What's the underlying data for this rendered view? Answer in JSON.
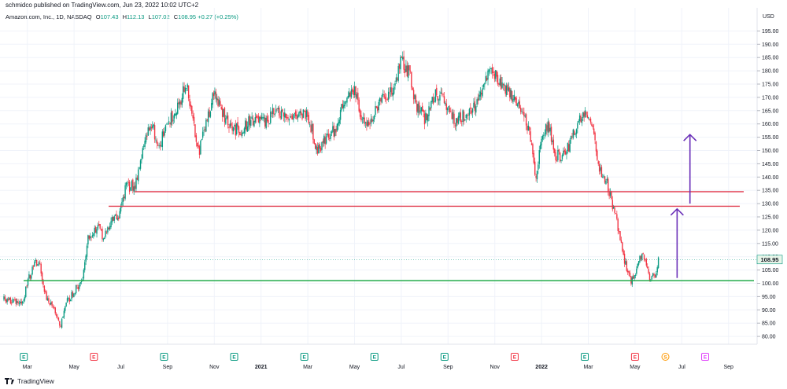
{
  "header": {
    "published": "schmidco published on TradingView.com, Jun 23, 2022 10:02 UTC+2",
    "symbol": "Amazon.com, Inc., 1D, NASDAQ",
    "ohlc": [
      {
        "label": "O",
        "value": "107.43"
      },
      {
        "label": "H",
        "value": "112.13"
      },
      {
        "label": "L",
        "value": "107.02"
      },
      {
        "label": "C",
        "value": "108.95"
      },
      {
        "label": "",
        "value": "+0.27 (+0.25%)"
      }
    ]
  },
  "footer": {
    "brand": "TradingView"
  },
  "colors": {
    "up": "#089981",
    "down": "#f23645",
    "resistance": "#e0394d",
    "support": "#22ab4a",
    "arrow": "#6a2fb8",
    "grid": "#f0f3fa"
  },
  "chart_data": {
    "type": "candlestick",
    "ylabel": "USD",
    "ylim": [
      77,
      197
    ],
    "y_ticks": [
      80.0,
      85.0,
      90.0,
      95.0,
      100.0,
      105.0,
      110.0,
      115.0,
      120.0,
      125.0,
      130.0,
      135.0,
      140.0,
      145.0,
      150.0,
      155.0,
      160.0,
      165.0,
      170.0,
      175.0,
      180.0,
      185.0,
      190.0,
      195.0
    ],
    "x_ticks": [
      "Mar",
      "May",
      "Jul",
      "Sep",
      "Nov",
      "2021",
      "Mar",
      "May",
      "Jul",
      "Sep",
      "Nov",
      "2022",
      "Mar",
      "May",
      "Jul",
      "Sep"
    ],
    "x_tick_bold": [
      false,
      false,
      false,
      false,
      false,
      true,
      false,
      false,
      false,
      false,
      false,
      true,
      false,
      false,
      false,
      false
    ],
    "last_price": "108.95",
    "horizontal_lines": [
      {
        "price": 134.5,
        "color": "resistance"
      },
      {
        "price": 129.0,
        "color": "resistance"
      },
      {
        "price": 101.0,
        "color": "support"
      }
    ],
    "arrows": [
      {
        "month": 28.8,
        "from": 102,
        "to": 128
      },
      {
        "month": 29.35,
        "from": 130,
        "to": 156
      }
    ],
    "events": [
      {
        "month": 0.85,
        "type": "E"
      },
      {
        "month": 3.85,
        "type": "E-red"
      },
      {
        "month": 6.85,
        "type": "E"
      },
      {
        "month": 9.85,
        "type": "E"
      },
      {
        "month": 12.85,
        "type": "E"
      },
      {
        "month": 15.85,
        "type": "E"
      },
      {
        "month": 18.85,
        "type": "E"
      },
      {
        "month": 21.85,
        "type": "E-red"
      },
      {
        "month": 24.85,
        "type": "E"
      },
      {
        "month": 27.0,
        "type": "E-red"
      },
      {
        "month": 28.3,
        "type": "S"
      },
      {
        "month": 30.0,
        "type": "E-future"
      }
    ],
    "price_path": [
      [
        0.0,
        94
      ],
      [
        0.8,
        92
      ],
      [
        1.0,
        100
      ],
      [
        1.3,
        108
      ],
      [
        1.55,
        106
      ],
      [
        1.7,
        97
      ],
      [
        2.0,
        92
      ],
      [
        2.25,
        88
      ],
      [
        2.4,
        83
      ],
      [
        2.7,
        93
      ],
      [
        3.0,
        97
      ],
      [
        3.35,
        101
      ],
      [
        3.6,
        118
      ],
      [
        4.0,
        121
      ],
      [
        4.3,
        117
      ],
      [
        4.6,
        124
      ],
      [
        4.9,
        125
      ],
      [
        5.2,
        136
      ],
      [
        5.6,
        137
      ],
      [
        6.0,
        152
      ],
      [
        6.3,
        161
      ],
      [
        6.6,
        151
      ],
      [
        7.0,
        160
      ],
      [
        7.4,
        166
      ],
      [
        7.8,
        175
      ],
      [
        8.0,
        165
      ],
      [
        8.35,
        150
      ],
      [
        8.7,
        162
      ],
      [
        9.0,
        172
      ],
      [
        9.3,
        165
      ],
      [
        9.7,
        158
      ],
      [
        10.2,
        158
      ],
      [
        10.6,
        162
      ],
      [
        11.2,
        160
      ],
      [
        11.6,
        165
      ],
      [
        12.0,
        162
      ],
      [
        12.4,
        164
      ],
      [
        13.0,
        164
      ],
      [
        13.4,
        150
      ],
      [
        13.8,
        155
      ],
      [
        14.2,
        158
      ],
      [
        14.6,
        170
      ],
      [
        15.0,
        173
      ],
      [
        15.3,
        161
      ],
      [
        15.7,
        161
      ],
      [
        16.1,
        168
      ],
      [
        16.6,
        172
      ],
      [
        17.0,
        184
      ],
      [
        17.4,
        178
      ],
      [
        17.6,
        168
      ],
      [
        18.0,
        162
      ],
      [
        18.5,
        172
      ],
      [
        19.0,
        166
      ],
      [
        19.3,
        161
      ],
      [
        19.8,
        164
      ],
      [
        20.3,
        168
      ],
      [
        20.8,
        181
      ],
      [
        21.2,
        176
      ],
      [
        21.6,
        172
      ],
      [
        22.2,
        165
      ],
      [
        22.5,
        155
      ],
      [
        22.75,
        140
      ],
      [
        23.0,
        155
      ],
      [
        23.3,
        160
      ],
      [
        23.6,
        148
      ],
      [
        24.0,
        148
      ],
      [
        24.4,
        157
      ],
      [
        24.9,
        166
      ],
      [
        25.2,
        158
      ],
      [
        25.5,
        142
      ],
      [
        25.8,
        138
      ],
      [
        26.0,
        131
      ],
      [
        26.2,
        124
      ],
      [
        26.45,
        112
      ],
      [
        26.8,
        101
      ],
      [
        27.0,
        103
      ],
      [
        27.3,
        112
      ],
      [
        27.6,
        102
      ],
      [
        27.9,
        104
      ],
      [
        28.0,
        109
      ]
    ]
  }
}
